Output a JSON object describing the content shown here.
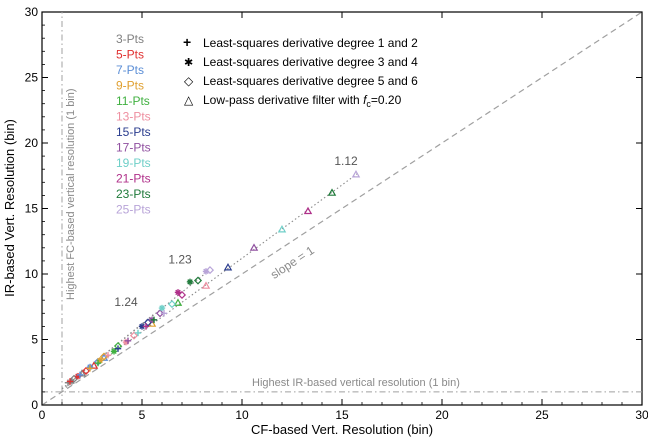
{
  "chart_data": {
    "type": "scatter",
    "title": "",
    "xlabel": "CF-based Vert. Resolution (bin)",
    "ylabel": "IR-based Vert. Resolution (bin)",
    "xlim": [
      0,
      30
    ],
    "ylim": [
      0,
      30
    ],
    "xticks": [
      "0",
      "5",
      "10",
      "15",
      "20",
      "25",
      "30"
    ],
    "yticks": [
      "0",
      "5",
      "10",
      "15",
      "20",
      "25",
      "30"
    ],
    "grid": false,
    "legend_placement": "top-left",
    "reference_lines": {
      "one_to_one": {
        "slope": 1,
        "label": "slope = 1",
        "color": "#a0a0a0"
      },
      "ir_limit": {
        "y": 1,
        "label": "Highest IR-based vertical resolution (1 bin)",
        "color": "#a0a0a0"
      },
      "fc_limit": {
        "x": 1,
        "label": "Highest FC-based vertical resolution (1 bin)",
        "color": "#a0a0a0"
      }
    },
    "fit_lines": [
      {
        "slope_label": "1.12",
        "slope": 1.12,
        "x_range": [
          1.2,
          15.8
        ]
      },
      {
        "slope_label": "1.23",
        "slope": 1.23,
        "x_range": [
          1.0,
          8.3
        ]
      },
      {
        "slope_label": "1.24",
        "slope": 1.24,
        "x_range": [
          1.0,
          5.6
        ]
      }
    ],
    "filter_legend": [
      {
        "marker": "plus",
        "symbol": "+",
        "label": "Least-squares derivative degree 1 and 2"
      },
      {
        "marker": "asterisk",
        "symbol": "✱",
        "label": "Least-squares derivative degree 3 and 4"
      },
      {
        "marker": "diamond",
        "symbol": "◇",
        "label": "Least-squares derivative degree 5 and 6"
      },
      {
        "marker": "triangle",
        "symbol": "△",
        "label": "Low-pass derivative filter with ",
        "fc_symbol": "f",
        "fc_sub": "c",
        "fc_value": "=0.20"
      }
    ],
    "series": [
      {
        "name": "3-Pts",
        "color": "#808080",
        "points": [
          {
            "x": 1.3,
            "y": 1.7,
            "m": "plus"
          },
          {
            "x": 1.5,
            "y": 1.8,
            "m": "asterisk"
          },
          {
            "x": 1.6,
            "y": 2.0,
            "m": "diamond"
          },
          {
            "x": 2.0,
            "y": 2.4,
            "m": "triangle"
          }
        ]
      },
      {
        "name": "5-Pts",
        "color": "#e03030",
        "points": [
          {
            "x": 1.4,
            "y": 1.8,
            "m": "plus"
          },
          {
            "x": 1.8,
            "y": 2.2,
            "m": "asterisk"
          },
          {
            "x": 2.2,
            "y": 2.6,
            "m": "diamond"
          },
          {
            "x": 2.6,
            "y": 3.0,
            "m": "triangle"
          }
        ]
      },
      {
        "name": "7-Pts",
        "color": "#5b8ed6",
        "points": [
          {
            "x": 1.9,
            "y": 2.3,
            "m": "plus"
          },
          {
            "x": 2.4,
            "y": 2.9,
            "m": "asterisk"
          },
          {
            "x": 2.8,
            "y": 3.3,
            "m": "diamond"
          },
          {
            "x": 3.1,
            "y": 3.6,
            "m": "triangle"
          }
        ]
      },
      {
        "name": "9-Pts",
        "color": "#e0a030",
        "points": [
          {
            "x": 2.4,
            "y": 2.8,
            "m": "plus"
          },
          {
            "x": 2.9,
            "y": 3.4,
            "m": "asterisk"
          },
          {
            "x": 3.1,
            "y": 3.7,
            "m": "diamond"
          },
          {
            "x": 5.5,
            "y": 6.2,
            "m": "triangle"
          }
        ]
      },
      {
        "name": "11-Pts",
        "color": "#40b040",
        "points": [
          {
            "x": 2.8,
            "y": 3.2,
            "m": "plus"
          },
          {
            "x": 3.6,
            "y": 4.1,
            "m": "asterisk"
          },
          {
            "x": 3.8,
            "y": 4.5,
            "m": "diamond"
          },
          {
            "x": 6.8,
            "y": 7.8,
            "m": "triangle"
          }
        ]
      },
      {
        "name": "13-Pts",
        "color": "#ee8fa0",
        "points": [
          {
            "x": 3.3,
            "y": 3.8,
            "m": "plus"
          },
          {
            "x": 4.2,
            "y": 4.8,
            "m": "asterisk"
          },
          {
            "x": 4.6,
            "y": 5.3,
            "m": "diamond"
          },
          {
            "x": 8.2,
            "y": 9.1,
            "m": "triangle"
          }
        ]
      },
      {
        "name": "15-Pts",
        "color": "#2a3c8e",
        "points": [
          {
            "x": 3.8,
            "y": 4.3,
            "m": "plus"
          },
          {
            "x": 5.0,
            "y": 6.0,
            "m": "asterisk"
          },
          {
            "x": 5.3,
            "y": 6.3,
            "m": "diamond"
          },
          {
            "x": 9.3,
            "y": 10.5,
            "m": "triangle"
          }
        ]
      },
      {
        "name": "17-Pts",
        "color": "#9050a0",
        "points": [
          {
            "x": 4.3,
            "y": 4.9,
            "m": "plus"
          },
          {
            "x": 5.5,
            "y": 6.5,
            "m": "asterisk"
          },
          {
            "x": 5.9,
            "y": 7.0,
            "m": "diamond"
          },
          {
            "x": 10.6,
            "y": 12.0,
            "m": "triangle"
          }
        ]
      },
      {
        "name": "19-Pts",
        "color": "#6fcfc8",
        "points": [
          {
            "x": 4.8,
            "y": 5.5,
            "m": "plus"
          },
          {
            "x": 6.0,
            "y": 7.4,
            "m": "asterisk"
          },
          {
            "x": 6.5,
            "y": 7.7,
            "m": "diamond"
          },
          {
            "x": 12.0,
            "y": 13.4,
            "m": "triangle"
          }
        ]
      },
      {
        "name": "21-Pts",
        "color": "#b0308a",
        "points": [
          {
            "x": 5.2,
            "y": 6.0,
            "m": "plus"
          },
          {
            "x": 6.8,
            "y": 8.6,
            "m": "asterisk"
          },
          {
            "x": 7.0,
            "y": 8.4,
            "m": "diamond"
          },
          {
            "x": 13.3,
            "y": 14.8,
            "m": "triangle"
          }
        ]
      },
      {
        "name": "23-Pts",
        "color": "#1f7a3a",
        "points": [
          {
            "x": 5.6,
            "y": 6.5,
            "m": "plus"
          },
          {
            "x": 7.4,
            "y": 9.4,
            "m": "asterisk"
          },
          {
            "x": 7.8,
            "y": 9.5,
            "m": "diamond"
          },
          {
            "x": 14.5,
            "y": 16.2,
            "m": "triangle"
          }
        ]
      },
      {
        "name": "25-Pts",
        "color": "#b8a4d8",
        "points": [
          {
            "x": 6.1,
            "y": 7.0,
            "m": "plus"
          },
          {
            "x": 8.2,
            "y": 10.2,
            "m": "asterisk"
          },
          {
            "x": 8.4,
            "y": 10.3,
            "m": "diamond"
          },
          {
            "x": 15.7,
            "y": 17.6,
            "m": "triangle"
          }
        ]
      }
    ]
  }
}
